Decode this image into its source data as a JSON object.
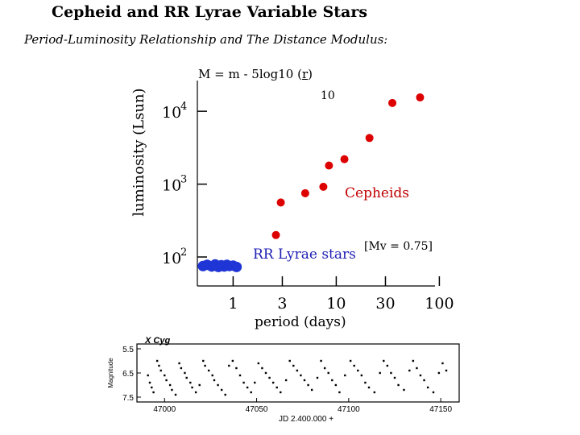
{
  "header": {
    "title": "Cepheid and RR Lyrae Variable Stars",
    "subtitle": "Period-Luminosity Relationship and The Distance Modulus:",
    "formula_main": "M = m - 5log10 (",
    "formula_r": "r",
    "formula_end": ")",
    "formula_superscript": "10"
  },
  "colors": {
    "cepheid": "#dd0000",
    "rr_lyrae": "#1f35d6",
    "label_blue": "#1f1fb4",
    "label_red": "#c00000"
  },
  "chart_data": [
    {
      "type": "scatter",
      "title": "",
      "xlabel": "period  (days)",
      "ylabel": "luminosity (Lsun)",
      "x_scale": "log",
      "y_scale": "log",
      "x_ticks": [
        1,
        3,
        10,
        30,
        100
      ],
      "x_tick_labels": [
        "1",
        "3",
        "10",
        "30",
        "100"
      ],
      "y_ticks": [
        100,
        1000,
        10000
      ],
      "y_tick_labels": [
        {
          "base": "10",
          "exp": "2"
        },
        {
          "base": "10",
          "exp": "3"
        },
        {
          "base": "10",
          "exp": "4"
        }
      ],
      "xlim": [
        0.45,
        130
      ],
      "ylim": [
        40,
        30000
      ],
      "annotations": {
        "rr_lyrae": "RR Lyrae stars",
        "cepheids": "Cepheids",
        "mv": "[Mv = 0.75]"
      },
      "series": [
        {
          "name": "RR Lyrae stars",
          "color": "#1f35d6",
          "points": [
            [
              0.51,
              75
            ],
            [
              0.56,
              78
            ],
            [
              0.62,
              74
            ],
            [
              0.67,
              79
            ],
            [
              0.72,
              73
            ],
            [
              0.77,
              77
            ],
            [
              0.82,
              74
            ],
            [
              0.87,
              78
            ],
            [
              0.92,
              75
            ],
            [
              1.0,
              76
            ],
            [
              1.08,
              73
            ]
          ]
        },
        {
          "name": "Cepheids",
          "color": "#dd0000",
          "points": [
            [
              2.6,
              200
            ],
            [
              2.9,
              560
            ],
            [
              5.0,
              750
            ],
            [
              7.5,
              920
            ],
            [
              8.5,
              1800
            ],
            [
              12.0,
              2200
            ],
            [
              21.0,
              4300
            ],
            [
              35.0,
              13000
            ],
            [
              65.0,
              15500
            ]
          ]
        }
      ]
    },
    {
      "type": "scatter",
      "title": "X Cyg",
      "xlabel": "JD 2.400.000 +",
      "ylabel": "Magnitude",
      "x_ticks": [
        47000,
        47050,
        47100,
        47150
      ],
      "x_tick_labels": [
        "47000",
        "47050",
        "47100",
        "47150"
      ],
      "y_ticks": [
        5.5,
        6.5,
        7.5
      ],
      "y_tick_labels": [
        "5.5",
        "6.5",
        "7.5"
      ],
      "xlim": [
        46985,
        47160
      ],
      "ylim": [
        7.7,
        5.3
      ],
      "period_days": 16.4,
      "series": [
        {
          "name": "",
          "color": "#000000",
          "points": [
            [
              46991,
              6.6
            ],
            [
              46992,
              6.9
            ],
            [
              46993,
              7.1
            ],
            [
              46994,
              7.3
            ],
            [
              46996,
              6.0
            ],
            [
              46997,
              6.2
            ],
            [
              46998,
              6.4
            ],
            [
              47000,
              6.6
            ],
            [
              47001,
              6.8
            ],
            [
              47003,
              7.0
            ],
            [
              47004,
              7.2
            ],
            [
              47006,
              7.4
            ],
            [
              47008,
              6.1
            ],
            [
              47009,
              6.3
            ],
            [
              47011,
              6.5
            ],
            [
              47012,
              6.7
            ],
            [
              47014,
              6.9
            ],
            [
              47015,
              7.1
            ],
            [
              47017,
              7.3
            ],
            [
              47019,
              7.0
            ],
            [
              47021,
              6.0
            ],
            [
              47022,
              6.2
            ],
            [
              47024,
              6.4
            ],
            [
              47026,
              6.6
            ],
            [
              47027,
              6.8
            ],
            [
              47029,
              7.0
            ],
            [
              47031,
              7.2
            ],
            [
              47033,
              7.4
            ],
            [
              47035,
              6.2
            ],
            [
              47037,
              6.0
            ],
            [
              47039,
              6.3
            ],
            [
              47041,
              6.6
            ],
            [
              47043,
              6.9
            ],
            [
              47045,
              7.1
            ],
            [
              47047,
              7.3
            ],
            [
              47049,
              6.9
            ],
            [
              47051,
              6.1
            ],
            [
              47053,
              6.3
            ],
            [
              47055,
              6.5
            ],
            [
              47057,
              6.7
            ],
            [
              47059,
              6.9
            ],
            [
              47061,
              7.1
            ],
            [
              47063,
              7.3
            ],
            [
              47066,
              6.8
            ],
            [
              47068,
              6.0
            ],
            [
              47070,
              6.2
            ],
            [
              47072,
              6.4
            ],
            [
              47074,
              6.6
            ],
            [
              47076,
              6.8
            ],
            [
              47078,
              7.0
            ],
            [
              47080,
              7.2
            ],
            [
              47083,
              6.7
            ],
            [
              47085,
              6.0
            ],
            [
              47087,
              6.3
            ],
            [
              47089,
              6.5
            ],
            [
              47091,
              6.8
            ],
            [
              47093,
              7.0
            ],
            [
              47095,
              7.3
            ],
            [
              47098,
              6.6
            ],
            [
              47101,
              6.0
            ],
            [
              47103,
              6.2
            ],
            [
              47105,
              6.4
            ],
            [
              47107,
              6.6
            ],
            [
              47109,
              6.9
            ],
            [
              47111,
              7.1
            ],
            [
              47114,
              7.3
            ],
            [
              47117,
              6.5
            ],
            [
              47119,
              6.0
            ],
            [
              47121,
              6.2
            ],
            [
              47123,
              6.5
            ],
            [
              47125,
              6.7
            ],
            [
              47127,
              7.0
            ],
            [
              47130,
              7.2
            ],
            [
              47133,
              6.4
            ],
            [
              47135,
              6.0
            ],
            [
              47137,
              6.3
            ],
            [
              47139,
              6.6
            ],
            [
              47141,
              6.8
            ],
            [
              47143,
              7.1
            ],
            [
              47146,
              7.3
            ],
            [
              47149,
              6.5
            ],
            [
              47151,
              6.1
            ],
            [
              47153,
              6.4
            ]
          ]
        }
      ]
    }
  ]
}
